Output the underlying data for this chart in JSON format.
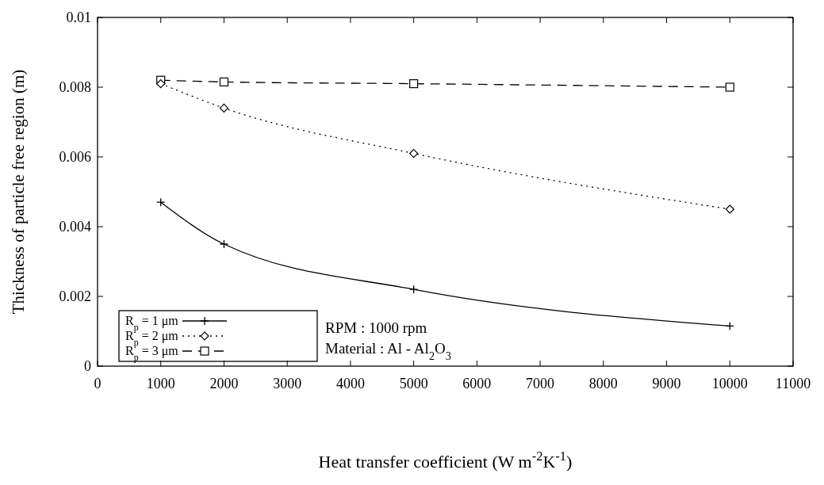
{
  "chart_data": {
    "type": "line",
    "xlabel": "Heat transfer coefficient (W m$^{-2}$K$^{-1}$)",
    "ylabel": "Thickness of particle free region (m)",
    "x": [
      1000,
      2000,
      5000,
      10000
    ],
    "series": [
      {
        "name": "R$_{p}$ = 1 μm",
        "color": "#000000",
        "values": [
          0.0047,
          0.0035,
          0.0022,
          0.00115
        ],
        "marker": "cross",
        "line_style": "solid"
      },
      {
        "name": "R$_{p}$ = 2 μm",
        "color": "#000000",
        "values": [
          0.0081,
          0.0074,
          0.0061,
          0.0045
        ],
        "marker": "diamond",
        "line_style": "dotted"
      },
      {
        "name": "R$_{p}$ = 3 μm",
        "color": "#000000",
        "values": [
          0.0082,
          0.00815,
          0.0081,
          0.008
        ],
        "marker": "square",
        "line_style": "dashed"
      }
    ],
    "xlim": [
      0,
      11000
    ],
    "xticks": [
      0,
      1000,
      2000,
      3000,
      4000,
      5000,
      6000,
      7000,
      8000,
      9000,
      10000,
      11000
    ],
    "ylim": [
      0,
      0.01
    ],
    "yticks": [
      0,
      0.002,
      0.004,
      0.006,
      0.008,
      0.01
    ],
    "legend": "bottom left",
    "grid": false,
    "annotations": [
      "RPM : 1000 rpm",
      "Material : Al - Al$_{2}$O$_{3}$"
    ]
  }
}
